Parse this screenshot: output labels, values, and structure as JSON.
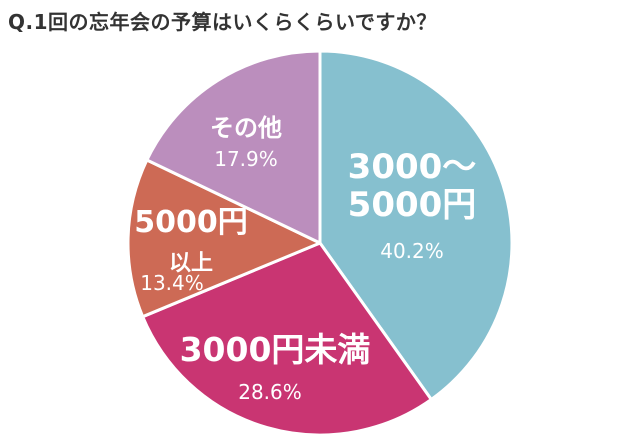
{
  "chart_data": {
    "type": "pie",
    "title": "Q.1回の忘年会の予算はいくらくらいですか？",
    "slices": [
      {
        "lines": [
          "3000～",
          "5000円"
        ],
        "value": 40.2,
        "value_label": "40.2%",
        "color": "#86c0cf"
      },
      {
        "lines": [
          "3000円未満"
        ],
        "value": 28.6,
        "value_label": "28.6%",
        "color": "#c93572"
      },
      {
        "lines": [
          "5000円",
          "以上"
        ],
        "value": 13.4,
        "value_label": "13.4%",
        "color": "#cd6a55"
      },
      {
        "lines": [
          "その他"
        ],
        "value": 17.9,
        "value_label": "17.9%",
        "color": "#bb8ebd"
      }
    ]
  }
}
